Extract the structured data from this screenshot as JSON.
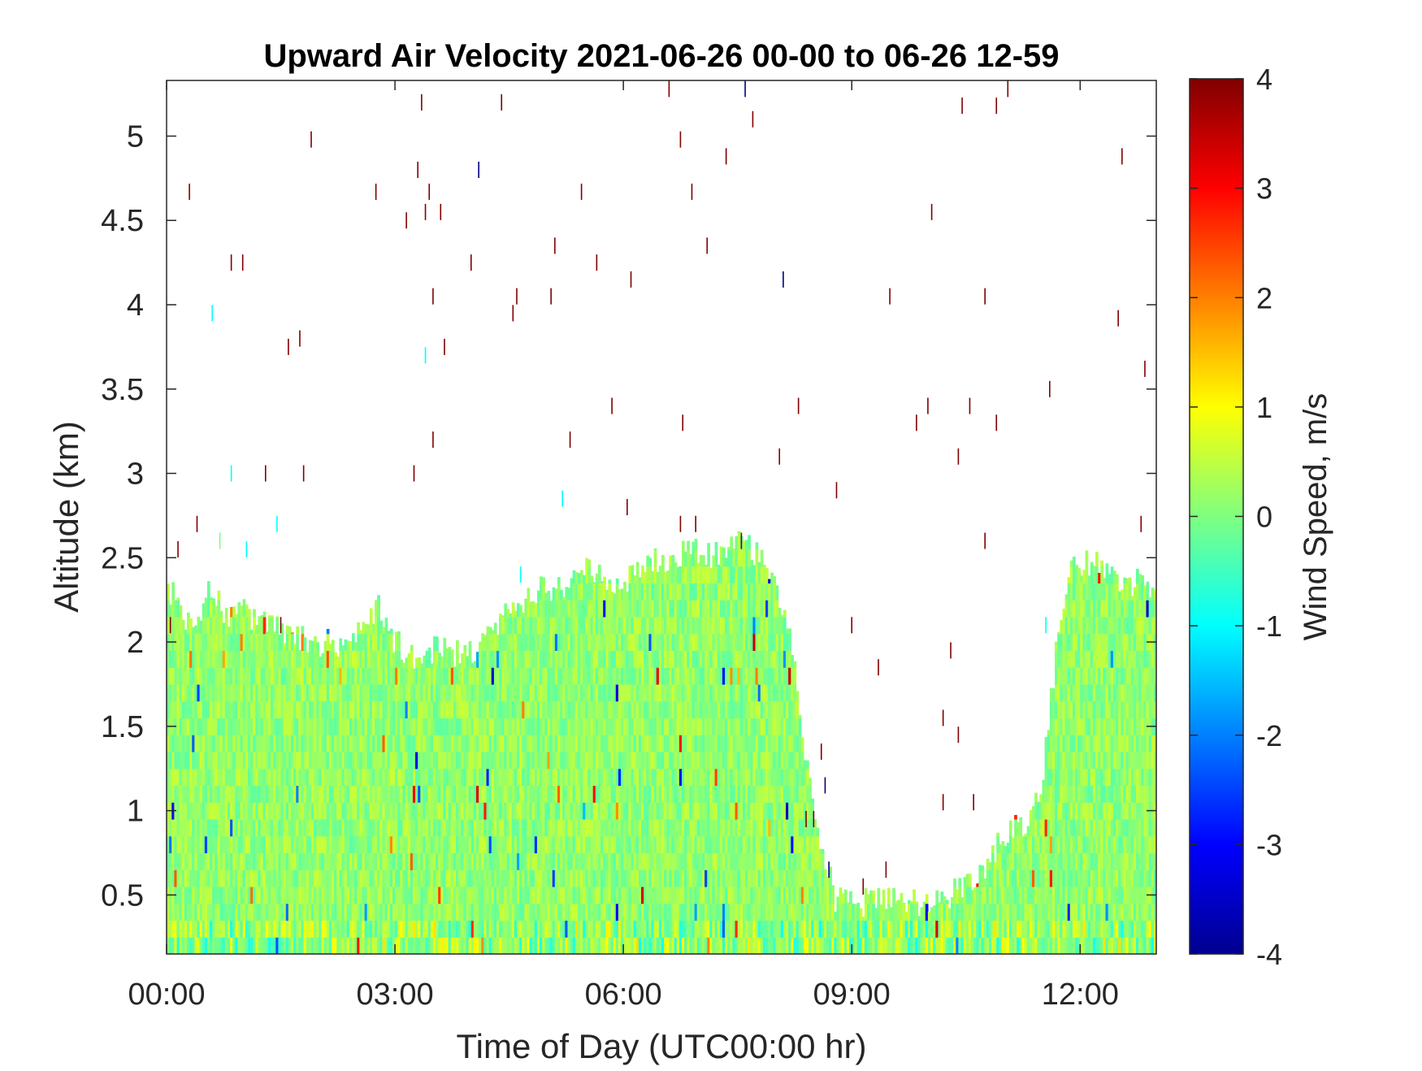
{
  "chart_data": {
    "type": "heatmap",
    "title": "Upward Air Velocity 2021-06-26 00-00 to 06-26 12-59",
    "xlabel": "Time of Day (UTC00:00 hr)",
    "ylabel": "Altitude (km)",
    "xlim": [
      0,
      13.0
    ],
    "ylim": [
      0.15,
      5.33
    ],
    "xticks": [
      {
        "value": 0,
        "label": "00:00"
      },
      {
        "value": 3,
        "label": "03:00"
      },
      {
        "value": 6,
        "label": "06:00"
      },
      {
        "value": 9,
        "label": "09:00"
      },
      {
        "value": 12,
        "label": "12:00"
      }
    ],
    "yticks": [
      0.5,
      1,
      1.5,
      2,
      2.5,
      3,
      3.5,
      4,
      4.5,
      5
    ],
    "grid": false,
    "colorbar": {
      "label": "Wind Speed, m/s",
      "colormap": "jet",
      "range": [
        -4,
        4
      ],
      "ticks": [
        -4,
        -3,
        -2,
        -1,
        0,
        1,
        2,
        3,
        4
      ]
    },
    "data_top_profile_km": [
      [
        0.0,
        2.33
      ],
      [
        0.3,
        2.1
      ],
      [
        0.6,
        2.33
      ],
      [
        0.8,
        2.1
      ],
      [
        1.0,
        2.2
      ],
      [
        1.2,
        2.1
      ],
      [
        1.5,
        2.1
      ],
      [
        1.8,
        2.0
      ],
      [
        2.0,
        2.0
      ],
      [
        2.4,
        2.0
      ],
      [
        2.8,
        2.2
      ],
      [
        3.0,
        2.0
      ],
      [
        3.3,
        1.9
      ],
      [
        3.6,
        2.0
      ],
      [
        3.9,
        1.9
      ],
      [
        4.1,
        1.95
      ],
      [
        4.3,
        2.1
      ],
      [
        4.6,
        2.2
      ],
      [
        4.9,
        2.33
      ],
      [
        5.2,
        2.33
      ],
      [
        5.5,
        2.45
      ],
      [
        5.8,
        2.33
      ],
      [
        6.0,
        2.33
      ],
      [
        6.3,
        2.5
      ],
      [
        6.6,
        2.45
      ],
      [
        6.8,
        2.55
      ],
      [
        7.0,
        2.55
      ],
      [
        7.2,
        2.5
      ],
      [
        7.4,
        2.55
      ],
      [
        7.6,
        2.6
      ],
      [
        7.8,
        2.5
      ],
      [
        8.0,
        2.3
      ],
      [
        8.2,
        2.0
      ],
      [
        8.4,
        1.3
      ],
      [
        8.6,
        0.8
      ],
      [
        8.8,
        0.46
      ],
      [
        9.0,
        0.46
      ],
      [
        9.5,
        0.46
      ],
      [
        10.0,
        0.46
      ],
      [
        10.3,
        0.5
      ],
      [
        10.6,
        0.55
      ],
      [
        10.8,
        0.7
      ],
      [
        11.0,
        0.85
      ],
      [
        11.3,
        0.95
      ],
      [
        11.5,
        1.2
      ],
      [
        11.7,
        2.0
      ],
      [
        11.9,
        2.5
      ],
      [
        12.2,
        2.45
      ],
      [
        12.5,
        2.35
      ],
      [
        12.8,
        2.35
      ],
      [
        13.0,
        2.33
      ]
    ],
    "sparse_points": [
      [
        0.05,
        2.1,
        4
      ],
      [
        0.15,
        2.55,
        4
      ],
      [
        0.3,
        4.67,
        4
      ],
      [
        0.4,
        2.7,
        4
      ],
      [
        0.6,
        3.95,
        -1
      ],
      [
        0.7,
        2.6,
        0
      ],
      [
        0.85,
        4.25,
        4
      ],
      [
        0.85,
        3.0,
        -1
      ],
      [
        1.0,
        4.25,
        4
      ],
      [
        1.05,
        2.55,
        -1
      ],
      [
        1.3,
        3.0,
        4
      ],
      [
        1.45,
        2.7,
        -1
      ],
      [
        1.5,
        2.1,
        4
      ],
      [
        1.6,
        3.75,
        4
      ],
      [
        1.75,
        3.8,
        4
      ],
      [
        1.8,
        3.0,
        4
      ],
      [
        1.9,
        4.98,
        4
      ],
      [
        2.75,
        4.67,
        4
      ],
      [
        3.15,
        4.5,
        4
      ],
      [
        3.25,
        3.0,
        4
      ],
      [
        3.3,
        4.8,
        4
      ],
      [
        3.35,
        5.2,
        4
      ],
      [
        3.4,
        4.55,
        4
      ],
      [
        3.45,
        4.67,
        4
      ],
      [
        3.4,
        3.7,
        -1
      ],
      [
        3.5,
        4.05,
        4
      ],
      [
        3.5,
        3.2,
        4
      ],
      [
        3.6,
        4.55,
        4
      ],
      [
        3.65,
        3.75,
        4
      ],
      [
        4.0,
        4.25,
        4
      ],
      [
        4.1,
        4.8,
        -4
      ],
      [
        4.4,
        5.2,
        4
      ],
      [
        4.55,
        3.95,
        4
      ],
      [
        4.6,
        4.05,
        4
      ],
      [
        4.65,
        2.4,
        -1
      ],
      [
        5.05,
        4.05,
        4
      ],
      [
        5.1,
        4.35,
        4
      ],
      [
        5.3,
        3.2,
        4
      ],
      [
        5.2,
        2.85,
        -1
      ],
      [
        5.45,
        4.67,
        4
      ],
      [
        5.65,
        4.25,
        4
      ],
      [
        5.85,
        3.4,
        4
      ],
      [
        6.05,
        2.8,
        4
      ],
      [
        6.1,
        4.15,
        4
      ],
      [
        6.6,
        5.28,
        4
      ],
      [
        6.75,
        4.98,
        4
      ],
      [
        6.78,
        3.3,
        4
      ],
      [
        6.75,
        2.7,
        4
      ],
      [
        6.9,
        4.67,
        4
      ],
      [
        6.95,
        2.7,
        4
      ],
      [
        7.1,
        4.35,
        4
      ],
      [
        7.35,
        4.88,
        4
      ],
      [
        7.55,
        2.6,
        4
      ],
      [
        7.6,
        5.28,
        -4
      ],
      [
        7.7,
        5.1,
        4
      ],
      [
        8.05,
        3.1,
        4
      ],
      [
        8.1,
        4.15,
        -4
      ],
      [
        8.3,
        3.4,
        4
      ],
      [
        8.4,
        0.95,
        4
      ],
      [
        8.5,
        0.95,
        4
      ],
      [
        8.6,
        1.35,
        4
      ],
      [
        8.65,
        1.15,
        -4
      ],
      [
        8.7,
        0.65,
        -4
      ],
      [
        8.8,
        2.9,
        4
      ],
      [
        9.0,
        2.1,
        4
      ],
      [
        9.15,
        0.55,
        4
      ],
      [
        9.35,
        1.85,
        4
      ],
      [
        9.45,
        0.65,
        4
      ],
      [
        9.5,
        4.05,
        4
      ],
      [
        9.85,
        3.3,
        4
      ],
      [
        10.0,
        3.4,
        4
      ],
      [
        10.05,
        4.55,
        4
      ],
      [
        10.2,
        1.55,
        4
      ],
      [
        10.2,
        1.05,
        4
      ],
      [
        10.3,
        1.95,
        4
      ],
      [
        10.4,
        1.45,
        4
      ],
      [
        10.4,
        3.1,
        4
      ],
      [
        10.45,
        5.18,
        4
      ],
      [
        10.55,
        3.4,
        4
      ],
      [
        10.6,
        1.05,
        4
      ],
      [
        10.75,
        4.05,
        4
      ],
      [
        10.75,
        2.6,
        4
      ],
      [
        10.9,
        3.3,
        4
      ],
      [
        10.9,
        5.18,
        4
      ],
      [
        11.05,
        5.28,
        4
      ],
      [
        11.55,
        2.1,
        -1
      ],
      [
        11.6,
        3.5,
        4
      ],
      [
        12.5,
        3.92,
        4
      ],
      [
        12.55,
        4.88,
        4
      ],
      [
        12.8,
        2.7,
        4
      ],
      [
        12.85,
        3.62,
        4
      ]
    ]
  }
}
